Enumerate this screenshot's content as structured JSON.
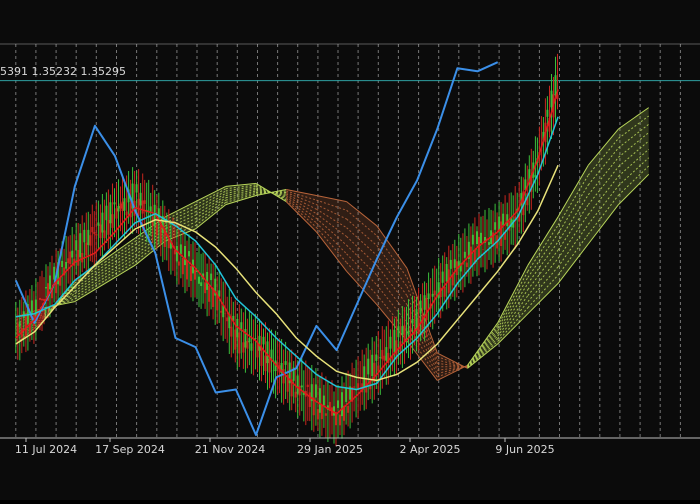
{
  "header": {
    "ohlc_text": "5391 1.35232 1.35295"
  },
  "colors": {
    "background": "#0b0b0b",
    "axis": "#bdbdbd",
    "grid": "#cfcfcf",
    "price_line": "#2f9fa0",
    "candle_up": "#3bbf3b",
    "candle_down": "#c8261f",
    "chikou": "#3b8fe8",
    "tenkan": "#e01b1b",
    "kijun": "#23c3d8",
    "sma": "#e8e27a",
    "cloud_bull": "#b8d65a",
    "cloud_bear": "#b8643a",
    "text": "#d8d8d8"
  },
  "chart_data": {
    "type": "line",
    "title": "",
    "xlabel": "",
    "ylabel": "",
    "x_ticks": [
      "11 Jul 2024",
      "17 Sep 2024",
      "21 Nov 2024",
      "29 Jan 2025",
      "2 Apr 2025",
      "9 Jun 2025"
    ],
    "ylim": [
      1.235,
      1.365
    ],
    "current_price": 1.3529,
    "grid": "vertical dashed",
    "dates": [
      "2024-06-20",
      "2024-07-03",
      "2024-07-17",
      "2024-07-31",
      "2024-08-14",
      "2024-08-28",
      "2024-09-11",
      "2024-09-25",
      "2024-10-09",
      "2024-10-23",
      "2024-11-06",
      "2024-11-20",
      "2024-12-04",
      "2024-12-18",
      "2025-01-01",
      "2025-01-15",
      "2025-01-29",
      "2025-02-12",
      "2025-02-26",
      "2025-03-12",
      "2025-03-26",
      "2025-04-09",
      "2025-04-23",
      "2025-05-07",
      "2025-05-21",
      "2025-06-04",
      "2025-06-18",
      "2025-07-02"
    ],
    "price_range": [
      [
        1.263,
        1.276
      ],
      [
        1.27,
        1.283
      ],
      [
        1.281,
        1.293
      ],
      [
        1.289,
        1.302
      ],
      [
        1.296,
        1.309
      ],
      [
        1.303,
        1.316
      ],
      [
        1.307,
        1.321
      ],
      [
        1.301,
        1.314
      ],
      [
        1.29,
        1.303
      ],
      [
        1.283,
        1.296
      ],
      [
        1.276,
        1.289
      ],
      [
        1.262,
        1.276
      ],
      [
        1.259,
        1.272
      ],
      [
        1.252,
        1.266
      ],
      [
        1.246,
        1.259
      ],
      [
        1.24,
        1.254
      ],
      [
        1.236,
        1.249
      ],
      [
        1.245,
        1.258
      ],
      [
        1.252,
        1.266
      ],
      [
        1.26,
        1.273
      ],
      [
        1.267,
        1.28
      ],
      [
        1.277,
        1.29
      ],
      [
        1.285,
        1.298
      ],
      [
        1.292,
        1.305
      ],
      [
        1.296,
        1.309
      ],
      [
        1.302,
        1.315
      ],
      [
        1.32,
        1.333
      ],
      [
        1.345,
        1.36
      ]
    ],
    "series": [
      {
        "name": "",
        "role": "chikou",
        "values": [
          1.287,
          1.273,
          1.286,
          1.318,
          1.338,
          1.328,
          1.31,
          1.296,
          1.268,
          1.265,
          1.25,
          1.251,
          1.236,
          1.255,
          1.258,
          1.272,
          1.264,
          1.279,
          1.294,
          1.308,
          1.32,
          1.337,
          1.357,
          1.356,
          1.359,
          null,
          null,
          null
        ]
      },
      {
        "name": "",
        "role": "tenkan",
        "values": [
          1.268,
          1.274,
          1.286,
          1.293,
          1.296,
          1.303,
          1.311,
          1.309,
          1.297,
          1.291,
          1.283,
          1.272,
          1.267,
          1.259,
          1.252,
          1.247,
          1.243,
          1.249,
          1.256,
          1.264,
          1.271,
          1.282,
          1.291,
          1.298,
          1.303,
          1.31,
          1.327,
          1.35
        ]
      },
      {
        "name": "",
        "role": "kijun",
        "values": [
          1.275,
          1.276,
          1.279,
          1.287,
          1.292,
          1.299,
          1.306,
          1.309,
          1.305,
          1.3,
          1.292,
          1.281,
          1.275,
          1.268,
          1.262,
          1.256,
          1.252,
          1.251,
          1.253,
          1.262,
          1.268,
          1.276,
          1.286,
          1.294,
          1.3,
          1.308,
          1.322,
          1.341
        ]
      },
      {
        "name": "",
        "role": "sma",
        "values": [
          1.266,
          1.27,
          1.278,
          1.285,
          1.292,
          1.298,
          1.304,
          1.307,
          1.306,
          1.303,
          1.298,
          1.291,
          1.283,
          1.276,
          1.268,
          1.262,
          1.257,
          1.255,
          1.254,
          1.256,
          1.26,
          1.266,
          1.274,
          1.282,
          1.29,
          1.299,
          1.31,
          1.325
        ]
      }
    ],
    "cloud_dates": [
      "2024-06-20",
      "2024-07-10",
      "2024-07-31",
      "2024-08-21",
      "2024-09-11",
      "2024-10-02",
      "2024-10-23",
      "2024-11-13",
      "2024-12-04",
      "2024-12-25",
      "2025-01-15",
      "2025-02-05",
      "2025-02-26",
      "2025-03-19",
      "2025-04-09",
      "2025-04-30",
      "2025-05-21",
      "2025-06-11",
      "2025-07-02",
      "2025-07-23",
      "2025-08-13",
      "2025-09-03"
    ],
    "cloud": {
      "span_a": [
        1.266,
        1.274,
        1.287,
        1.294,
        1.301,
        1.308,
        1.313,
        1.318,
        1.319,
        1.313,
        1.303,
        1.29,
        1.279,
        1.267,
        1.254,
        1.259,
        1.273,
        1.292,
        1.308,
        1.325,
        1.337,
        1.344
      ],
      "span_b": [
        1.275,
        1.278,
        1.28,
        1.286,
        1.292,
        1.3,
        1.304,
        1.312,
        1.315,
        1.317,
        1.315,
        1.313,
        1.305,
        1.291,
        1.263,
        1.258,
        1.266,
        1.276,
        1.286,
        1.299,
        1.312,
        1.322
      ]
    }
  }
}
